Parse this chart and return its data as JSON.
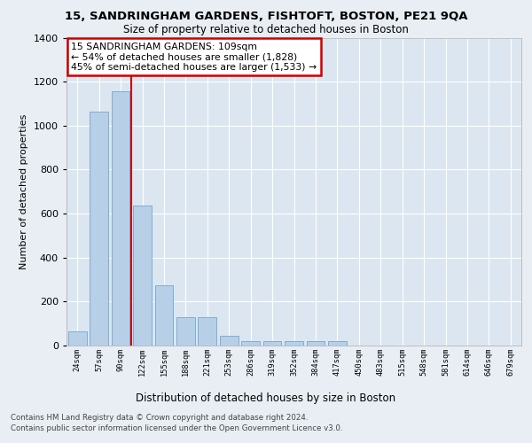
{
  "title_line1": "15, SANDRINGHAM GARDENS, FISHTOFT, BOSTON, PE21 9QA",
  "title_line2": "Size of property relative to detached houses in Boston",
  "xlabel": "Distribution of detached houses by size in Boston",
  "ylabel": "Number of detached properties",
  "categories": [
    "24sqm",
    "57sqm",
    "90sqm",
    "122sqm",
    "155sqm",
    "188sqm",
    "221sqm",
    "253sqm",
    "286sqm",
    "319sqm",
    "352sqm",
    "384sqm",
    "417sqm",
    "450sqm",
    "483sqm",
    "515sqm",
    "548sqm",
    "581sqm",
    "614sqm",
    "646sqm",
    "679sqm"
  ],
  "values": [
    65,
    1065,
    1155,
    635,
    275,
    130,
    130,
    45,
    20,
    20,
    20,
    20,
    20,
    0,
    0,
    0,
    0,
    0,
    0,
    0,
    0
  ],
  "bar_color": "#b8cfe8",
  "bar_edgecolor": "#7aafd4",
  "annotation_text": "15 SANDRINGHAM GARDENS: 109sqm\n← 54% of detached houses are smaller (1,828)\n45% of semi-detached houses are larger (1,533) →",
  "annotation_box_color": "#ffffff",
  "annotation_box_edgecolor": "#cc0000",
  "vline_color": "#cc0000",
  "bg_color": "#e8eef4",
  "plot_bg_color": "#dce6f0",
  "footer_line1": "Contains HM Land Registry data © Crown copyright and database right 2024.",
  "footer_line2": "Contains public sector information licensed under the Open Government Licence v3.0.",
  "ylim": [
    0,
    1400
  ],
  "yticks": [
    0,
    200,
    400,
    600,
    800,
    1000,
    1200,
    1400
  ]
}
